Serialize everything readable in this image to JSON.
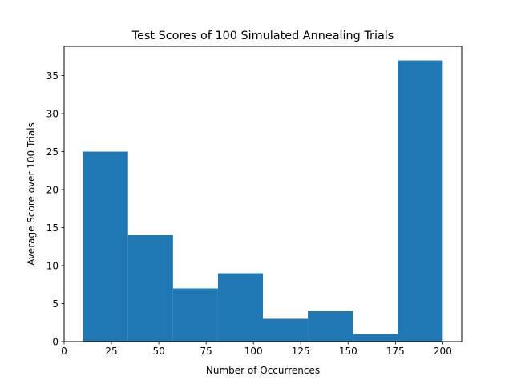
{
  "chart_data": {
    "type": "bar",
    "title": "Test Scores of 100 Simulated Annealing Trials",
    "xlabel": "Number of Occurrences",
    "ylabel": "Average Score over 100 Trials",
    "xlim": [
      0,
      210
    ],
    "ylim": [
      0,
      38.85
    ],
    "xticks": [
      0,
      25,
      50,
      75,
      100,
      125,
      150,
      175,
      200
    ],
    "yticks": [
      0,
      5,
      10,
      15,
      20,
      25,
      30,
      35
    ],
    "bins": [
      {
        "x0": 10,
        "x1": 33.75,
        "value": 25
      },
      {
        "x0": 33.75,
        "x1": 57.5,
        "value": 14
      },
      {
        "x0": 57.5,
        "x1": 81.25,
        "value": 7
      },
      {
        "x0": 81.25,
        "x1": 105,
        "value": 9
      },
      {
        "x0": 105,
        "x1": 128.75,
        "value": 3
      },
      {
        "x0": 128.75,
        "x1": 152.5,
        "value": 4
      },
      {
        "x0": 152.5,
        "x1": 176.25,
        "value": 1
      },
      {
        "x0": 176.25,
        "x1": 200,
        "value": 37
      }
    ],
    "bar_color": "#1f77b4",
    "grid": false,
    "legend": "none"
  }
}
